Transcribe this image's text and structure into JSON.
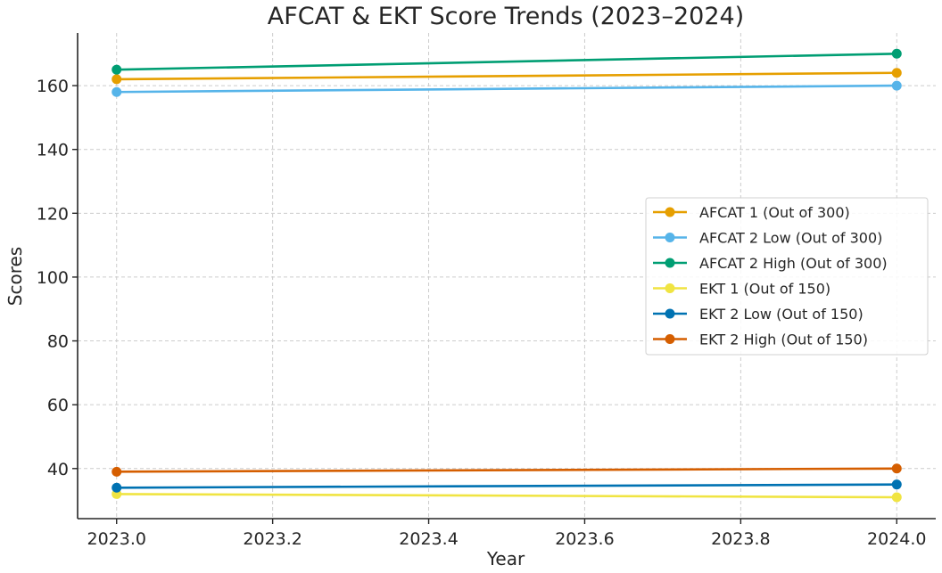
{
  "chart_data": {
    "type": "line",
    "title": "AFCAT & EKT Score Trends (2023–2024)",
    "xlabel": "Year",
    "ylabel": "Scores",
    "x": [
      2023,
      2024
    ],
    "xlim": [
      2022.95,
      2024.05
    ],
    "ylim": [
      24.3,
      176.5
    ],
    "xticks": [
      "2023.0",
      "2023.2",
      "2023.4",
      "2023.6",
      "2023.8",
      "2024.0"
    ],
    "xtick_values": [
      2023.0,
      2023.2,
      2023.4,
      2023.6,
      2023.8,
      2024.0
    ],
    "yticks": [
      "40",
      "60",
      "80",
      "100",
      "120",
      "140",
      "160"
    ],
    "ytick_values": [
      40,
      60,
      80,
      100,
      120,
      140,
      160
    ],
    "grid": true,
    "legend_placement": "center-right",
    "series": [
      {
        "name": "AFCAT 1 (Out of 300)",
        "values": [
          162,
          164
        ],
        "color": "#E69F00"
      },
      {
        "name": "AFCAT 2 Low (Out of 300)",
        "values": [
          158,
          160
        ],
        "color": "#56B4E9"
      },
      {
        "name": "AFCAT 2 High (Out of 300)",
        "values": [
          165,
          170
        ],
        "color": "#009E73"
      },
      {
        "name": "EKT 1 (Out of 150)",
        "values": [
          32,
          31
        ],
        "color": "#F0E442"
      },
      {
        "name": "EKT 2 Low (Out of 150)",
        "values": [
          34,
          35
        ],
        "color": "#0072B2"
      },
      {
        "name": "EKT 2 High (Out of 150)",
        "values": [
          39,
          40
        ],
        "color": "#D55E00"
      }
    ]
  }
}
